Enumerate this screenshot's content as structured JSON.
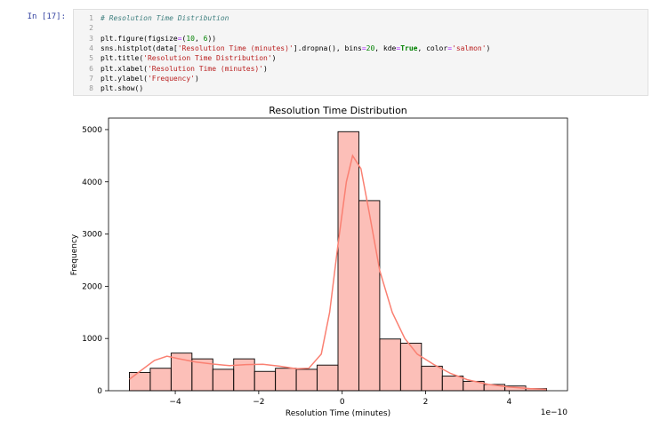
{
  "cell": {
    "prompt": "In [17]:",
    "lines": [
      {
        "n": "1",
        "segs": [
          {
            "c": "cmt",
            "t": "# Resolution Time Distribution"
          }
        ]
      },
      {
        "n": "2",
        "segs": []
      },
      {
        "n": "3",
        "segs": [
          {
            "c": "",
            "t": "plt.figure(figsize"
          },
          {
            "c": "op",
            "t": "="
          },
          {
            "c": "",
            "t": "("
          },
          {
            "c": "num",
            "t": "10"
          },
          {
            "c": "",
            "t": ", "
          },
          {
            "c": "num",
            "t": "6"
          },
          {
            "c": "",
            "t": "))"
          }
        ]
      },
      {
        "n": "4",
        "segs": [
          {
            "c": "",
            "t": "sns.histplot(data["
          },
          {
            "c": "str",
            "t": "'Resolution Time (minutes)'"
          },
          {
            "c": "",
            "t": "].dropna(), bins"
          },
          {
            "c": "op",
            "t": "="
          },
          {
            "c": "num",
            "t": "20"
          },
          {
            "c": "",
            "t": ", kde"
          },
          {
            "c": "op",
            "t": "="
          },
          {
            "c": "kw",
            "t": "True"
          },
          {
            "c": "",
            "t": ", color"
          },
          {
            "c": "op",
            "t": "="
          },
          {
            "c": "str",
            "t": "'salmon'"
          },
          {
            "c": "",
            "t": ")"
          }
        ]
      },
      {
        "n": "5",
        "segs": [
          {
            "c": "",
            "t": "plt.title("
          },
          {
            "c": "str",
            "t": "'Resolution Time Distribution'"
          },
          {
            "c": "",
            "t": ")"
          }
        ]
      },
      {
        "n": "6",
        "segs": [
          {
            "c": "",
            "t": "plt.xlabel("
          },
          {
            "c": "str",
            "t": "'Resolution Time (minutes)'"
          },
          {
            "c": "",
            "t": ")"
          }
        ]
      },
      {
        "n": "7",
        "segs": [
          {
            "c": "",
            "t": "plt.ylabel("
          },
          {
            "c": "str",
            "t": "'Frequency'"
          },
          {
            "c": "",
            "t": ")"
          }
        ]
      },
      {
        "n": "8",
        "segs": [
          {
            "c": "",
            "t": "plt.show()"
          }
        ]
      }
    ]
  },
  "chart_data": {
    "type": "bar",
    "title": "Resolution Time Distribution",
    "xlabel": "Resolution Time (minutes)",
    "ylabel": "Frequency",
    "x_offset_text": "1e−10",
    "bar_color": "#fa8072",
    "bin_edges": [
      -5.1,
      -4.6,
      -4.1,
      -3.6,
      -3.1,
      -2.6,
      -2.1,
      -1.6,
      -1.1,
      -0.6,
      -0.1,
      0.4,
      0.9,
      1.4,
      1.9,
      2.4,
      2.9,
      3.4,
      3.9,
      4.4,
      4.9
    ],
    "values": [
      350,
      430,
      720,
      610,
      410,
      610,
      370,
      430,
      410,
      490,
      4960,
      3640,
      990,
      910,
      470,
      280,
      180,
      120,
      90,
      40
    ],
    "kde": [
      [
        -5.1,
        220
      ],
      [
        -4.8,
        400
      ],
      [
        -4.5,
        580
      ],
      [
        -4.2,
        660
      ],
      [
        -3.9,
        610
      ],
      [
        -3.5,
        550
      ],
      [
        -3.1,
        510
      ],
      [
        -2.7,
        480
      ],
      [
        -2.3,
        500
      ],
      [
        -1.9,
        505
      ],
      [
        -1.5,
        470
      ],
      [
        -1.1,
        420
      ],
      [
        -0.8,
        430
      ],
      [
        -0.5,
        700
      ],
      [
        -0.3,
        1500
      ],
      [
        -0.1,
        2800
      ],
      [
        0.1,
        4000
      ],
      [
        0.25,
        4500
      ],
      [
        0.45,
        4250
      ],
      [
        0.65,
        3400
      ],
      [
        0.9,
        2300
      ],
      [
        1.2,
        1500
      ],
      [
        1.5,
        1000
      ],
      [
        1.8,
        700
      ],
      [
        2.2,
        500
      ],
      [
        2.6,
        330
      ],
      [
        3.0,
        210
      ],
      [
        3.5,
        120
      ],
      [
        4.0,
        70
      ],
      [
        4.5,
        40
      ],
      [
        4.9,
        25
      ]
    ],
    "xlim": [
      -5.6,
      5.4
    ],
    "ylim": [
      0,
      5220
    ],
    "xticks": [
      {
        "v": -4,
        "label": "−4"
      },
      {
        "v": -2,
        "label": "−2"
      },
      {
        "v": 0,
        "label": "0"
      },
      {
        "v": 2,
        "label": "2"
      },
      {
        "v": 4,
        "label": "4"
      }
    ],
    "yticks": [
      {
        "v": 0,
        "label": "0"
      },
      {
        "v": 1000,
        "label": "1000"
      },
      {
        "v": 2000,
        "label": "2000"
      },
      {
        "v": 3000,
        "label": "3000"
      },
      {
        "v": 4000,
        "label": "4000"
      },
      {
        "v": 5000,
        "label": "5000"
      }
    ],
    "grid": false,
    "legend": "none"
  }
}
